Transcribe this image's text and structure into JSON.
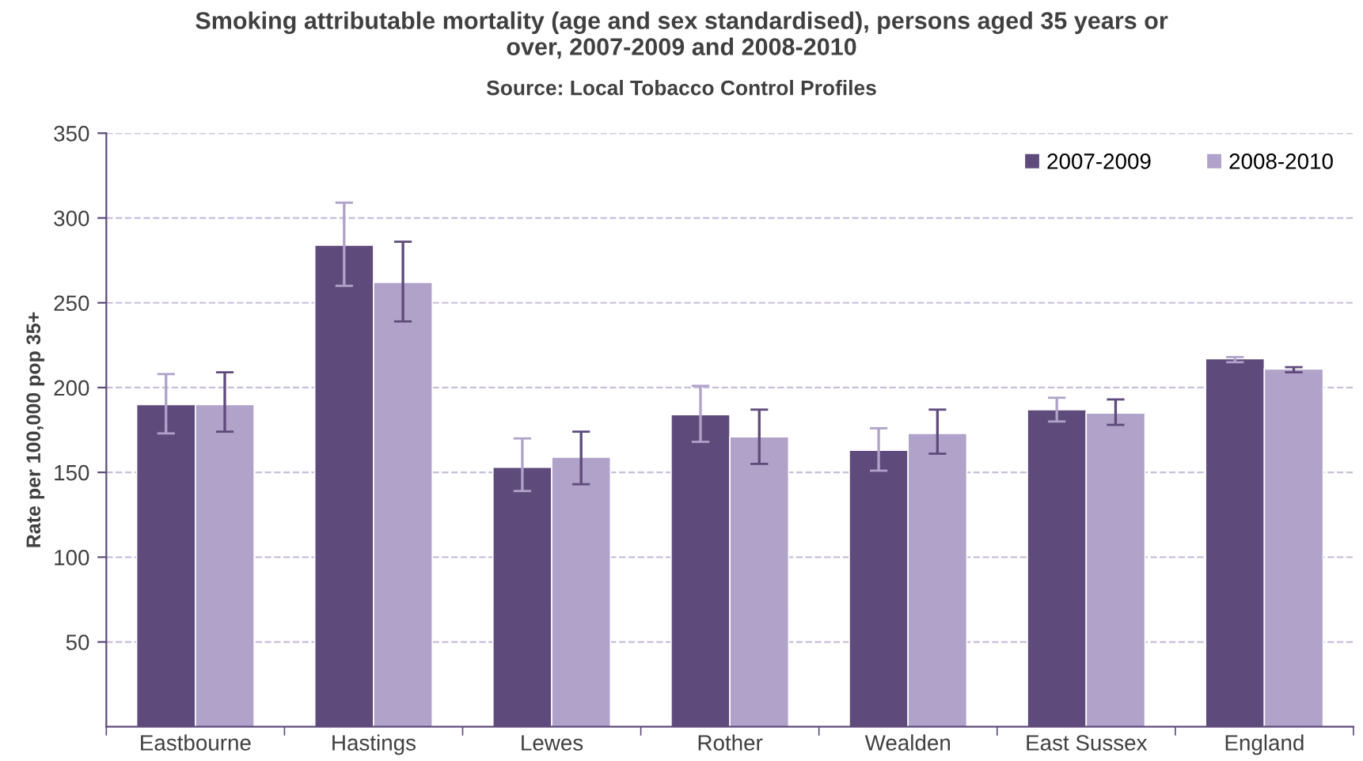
{
  "chart_data": {
    "type": "bar",
    "title": "Smoking attributable mortality (age and sex standardised), persons aged 35 years or\nover, 2007-2009 and 2008-2010",
    "subtitle": "Source: Local Tobacco Control Profiles",
    "ylabel": "Rate per 100,000 pop 35+",
    "categories": [
      "Eastbourne",
      "Hastings",
      "Lewes",
      "Rother",
      "Wealden",
      "East Sussex",
      "England"
    ],
    "series": [
      {
        "name": "2007-2009",
        "color": "#5f4b7b",
        "values": [
          190,
          284,
          153,
          184,
          163,
          187,
          217
        ],
        "errors": [
          [
            173,
            208
          ],
          [
            260,
            309
          ],
          [
            139,
            170
          ],
          [
            168,
            201
          ],
          [
            151,
            176
          ],
          [
            180,
            194
          ],
          [
            215,
            218
          ]
        ]
      },
      {
        "name": "2008-2010",
        "color": "#b0a2c8",
        "values": [
          190,
          262,
          159,
          171,
          173,
          185,
          211
        ],
        "errors": [
          [
            174,
            209
          ],
          [
            239,
            286
          ],
          [
            143,
            174
          ],
          [
            155,
            187
          ],
          [
            161,
            187
          ],
          [
            178,
            193
          ],
          [
            209,
            212
          ]
        ]
      }
    ],
    "ylim": [
      0,
      350
    ],
    "yticks": [
      50,
      100,
      150,
      200,
      250,
      300,
      350
    ],
    "grid": "y",
    "legend": "top right"
  }
}
